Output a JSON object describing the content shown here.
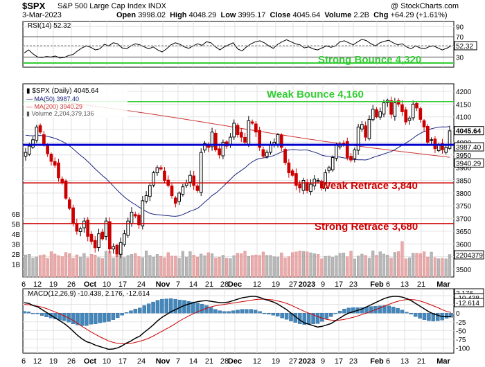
{
  "header": {
    "symbol": "$SPX",
    "name": "S&P 500 Large Cap Index",
    "exchange": "INDX",
    "credit": "@ StockCharts.com",
    "date": "3-Mar-2023",
    "open_label": "Open",
    "open": "3998.02",
    "high_label": "High",
    "high": "4048.29",
    "low_label": "Low",
    "low": "3995.17",
    "close_label": "Close",
    "close": "4045.64",
    "volume_label": "Volume",
    "volume": "2.2B",
    "chg_label": "Chg",
    "chg": "+64.29 (+1.61%)"
  },
  "chart_data": [
    {
      "type": "line",
      "panel": "RSI",
      "legend": "RSI(14) 52.32",
      "current_value": "52.32",
      "ylim": [
        10,
        100
      ],
      "y_ticks": [
        90,
        70,
        50,
        30
      ],
      "reference_lines": [
        70,
        30
      ],
      "annotation": "Strong Bounce 4,320",
      "values": [
        38,
        44,
        36,
        30,
        29,
        31,
        30,
        32,
        28,
        29,
        33,
        35,
        42,
        48,
        52,
        49,
        44,
        46,
        55,
        52,
        58,
        56,
        48,
        46,
        52,
        56,
        54,
        50,
        46,
        50,
        44,
        40,
        46,
        54,
        58,
        55,
        50,
        47,
        52,
        56,
        53,
        60,
        58,
        50,
        44,
        50,
        54,
        58,
        46,
        42,
        50,
        56,
        60,
        62,
        58,
        52,
        47,
        55,
        60,
        64,
        60,
        56,
        54,
        48,
        50,
        46,
        44,
        48,
        52,
        49,
        52,
        60,
        62,
        58,
        54,
        60,
        65,
        62,
        56,
        52,
        58,
        61,
        63,
        58,
        54,
        56,
        50,
        46,
        52,
        48,
        46,
        50,
        52,
        48,
        44,
        47,
        52
      ]
    },
    {
      "type": "candlestick",
      "panel": "Price",
      "legend_title": "$SPX (Daily) 4045.64",
      "legend_ma50": "MA(50) 3987.40",
      "legend_ma200": "MA(200) 3940.29",
      "legend_volume": "Volume 2,204,379,136",
      "price_tag": "4045.64",
      "ma50_tag": "3987.40",
      "ma200_tag": "3940.29",
      "volume_tag": "2204379",
      "ylim": [
        3470,
        4230
      ],
      "y_ticks": [
        4200,
        4150,
        4100,
        4050,
        4000,
        3950,
        3900,
        3850,
        3800,
        3750,
        3700,
        3650,
        3600,
        3550,
        3500
      ],
      "volume_axis_ticks": [
        "6B",
        "5B",
        "4B",
        "3B",
        "2B",
        "1B"
      ],
      "levels": [
        {
          "label": "Weak Bounce 4,160",
          "value": 4160,
          "color": "#33cc33"
        },
        {
          "label": "",
          "value": 3990,
          "color": "#0000cc"
        },
        {
          "label": "Weak Retrace 3,840",
          "value": 3840,
          "color": "#cc0000"
        },
        {
          "label": "Strong Retrace 3,680",
          "value": 3680,
          "color": "#cc0000"
        }
      ],
      "close": [
        3960,
        3985,
        4010,
        4060,
        4040,
        3990,
        3955,
        3925,
        3910,
        3860,
        3840,
        3780,
        3740,
        3680,
        3650,
        3660,
        3690,
        3630,
        3610,
        3585,
        3640,
        3620,
        3690,
        3580,
        3590,
        3560,
        3605,
        3640,
        3690,
        3725,
        3710,
        3675,
        3770,
        3790,
        3830,
        3880,
        3900,
        3895,
        3850,
        3830,
        3790,
        3760,
        3800,
        3825,
        3840,
        3870,
        3830,
        3810,
        3960,
        3995,
        3980,
        4040,
        3970,
        3950,
        4000,
        3985,
        4020,
        4075,
        4030,
        4020,
        4000,
        4085,
        4075,
        4040,
        3980,
        3945,
        3960,
        3990,
        4000,
        4030,
        3980,
        3920,
        3880,
        3870,
        3830,
        3820,
        3850,
        3810,
        3835,
        3855,
        3850,
        3820,
        3880,
        3900,
        3940,
        3990,
        3990,
        3995,
        3940,
        3930,
        3970,
        4060,
        4070,
        4020,
        4090,
        4130,
        4100,
        4120,
        4155,
        4165,
        4110,
        4155,
        4150,
        4120,
        4080,
        4095,
        4150,
        4135,
        4090,
        4060,
        4000,
        4010,
        3975,
        3990,
        3970,
        3980,
        4045
      ]
    },
    {
      "type": "line",
      "panel": "MACD",
      "legend": "MACD(12,26,9) -10.438, 2.176, -12.614",
      "value_tags": [
        "2.176",
        "-10.438",
        "-12.614"
      ],
      "ylim": [
        -115,
        70
      ],
      "y_ticks": [
        50,
        25,
        0,
        -25,
        -50,
        -75,
        -100
      ],
      "macd": [
        30,
        28,
        22,
        18,
        10,
        2,
        -6,
        -14,
        -22,
        -30,
        -40,
        -52,
        -64,
        -74,
        -82,
        -86,
        -92,
        -96,
        -100,
        -104,
        -103,
        -100,
        -94,
        -86,
        -80,
        -72,
        -66,
        -55,
        -45,
        -34,
        -22,
        -12,
        -4,
        4,
        10,
        16,
        22,
        26,
        30,
        33,
        35,
        36,
        34,
        32,
        30,
        30,
        32,
        36,
        40,
        44,
        46,
        48,
        48,
        45,
        40,
        36,
        32,
        26,
        18,
        10,
        0,
        -10,
        -20,
        -28,
        -32,
        -36,
        -40,
        -38,
        -34,
        -30,
        -22,
        -14,
        -6,
        0,
        4,
        8,
        12,
        18,
        24,
        30,
        36,
        42,
        46,
        48,
        48,
        46,
        42,
        36,
        28,
        20,
        12,
        4,
        -2,
        -6,
        -10,
        -10,
        -10
      ],
      "signal": [
        25,
        24,
        22,
        20,
        17,
        13,
        8,
        3,
        -2,
        -8,
        -14,
        -21,
        -30,
        -38,
        -46,
        -54,
        -61,
        -68,
        -74,
        -80,
        -84,
        -87,
        -88,
        -88,
        -87,
        -84,
        -81,
        -77,
        -72,
        -66,
        -59,
        -52,
        -45,
        -38,
        -30,
        -22,
        -15,
        -8,
        -2,
        4,
        9,
        14,
        18,
        21,
        23,
        25,
        27,
        29,
        31,
        33,
        35,
        37,
        39,
        40,
        40,
        39,
        38,
        35,
        32,
        28,
        23,
        17,
        11,
        5,
        0,
        -5,
        -10,
        -14,
        -18,
        -20,
        -21,
        -20,
        -18,
        -15,
        -12,
        -8,
        -4,
        0,
        5,
        10,
        15,
        20,
        25,
        30,
        34,
        37,
        39,
        39,
        38,
        35,
        31,
        26,
        21,
        16,
        10,
        5,
        2
      ]
    }
  ],
  "x_axis": {
    "labels": [
      {
        "text": "6",
        "bold": false
      },
      {
        "text": "12",
        "bold": false
      },
      {
        "text": "19",
        "bold": false
      },
      {
        "text": "26",
        "bold": false
      },
      {
        "text": "Oct",
        "bold": true
      },
      {
        "text": "10",
        "bold": false
      },
      {
        "text": "17",
        "bold": false
      },
      {
        "text": "24",
        "bold": false
      },
      {
        "text": "Nov",
        "bold": true
      },
      {
        "text": "7",
        "bold": false
      },
      {
        "text": "14",
        "bold": false
      },
      {
        "text": "21",
        "bold": false
      },
      {
        "text": "28",
        "bold": false
      },
      {
        "text": "Dec",
        "bold": true
      },
      {
        "text": "12",
        "bold": false
      },
      {
        "text": "19",
        "bold": false
      },
      {
        "text": "27",
        "bold": false
      },
      {
        "text": "2023",
        "bold": true
      },
      {
        "text": "9",
        "bold": false
      },
      {
        "text": "17",
        "bold": false
      },
      {
        "text": "23",
        "bold": false
      },
      {
        "text": "Feb",
        "bold": true
      },
      {
        "text": "6",
        "bold": false
      },
      {
        "text": "13",
        "bold": false
      },
      {
        "text": "21",
        "bold": false
      },
      {
        "text": "Mar",
        "bold": true
      }
    ]
  },
  "colors": {
    "up": "#000000",
    "down": "#cc0000",
    "ma50": "#1a237e",
    "ma200": "#cc3333",
    "volume_up": "#b8b8b8",
    "volume_down": "#e8aaaa",
    "macd": "#000000",
    "signal": "#cc0000",
    "histogram": "#4488bb",
    "grid": "#e2e2e2",
    "annotation_green": "#33cc33",
    "annotation_red": "#cc0000",
    "level_blue": "#0000cc"
  }
}
